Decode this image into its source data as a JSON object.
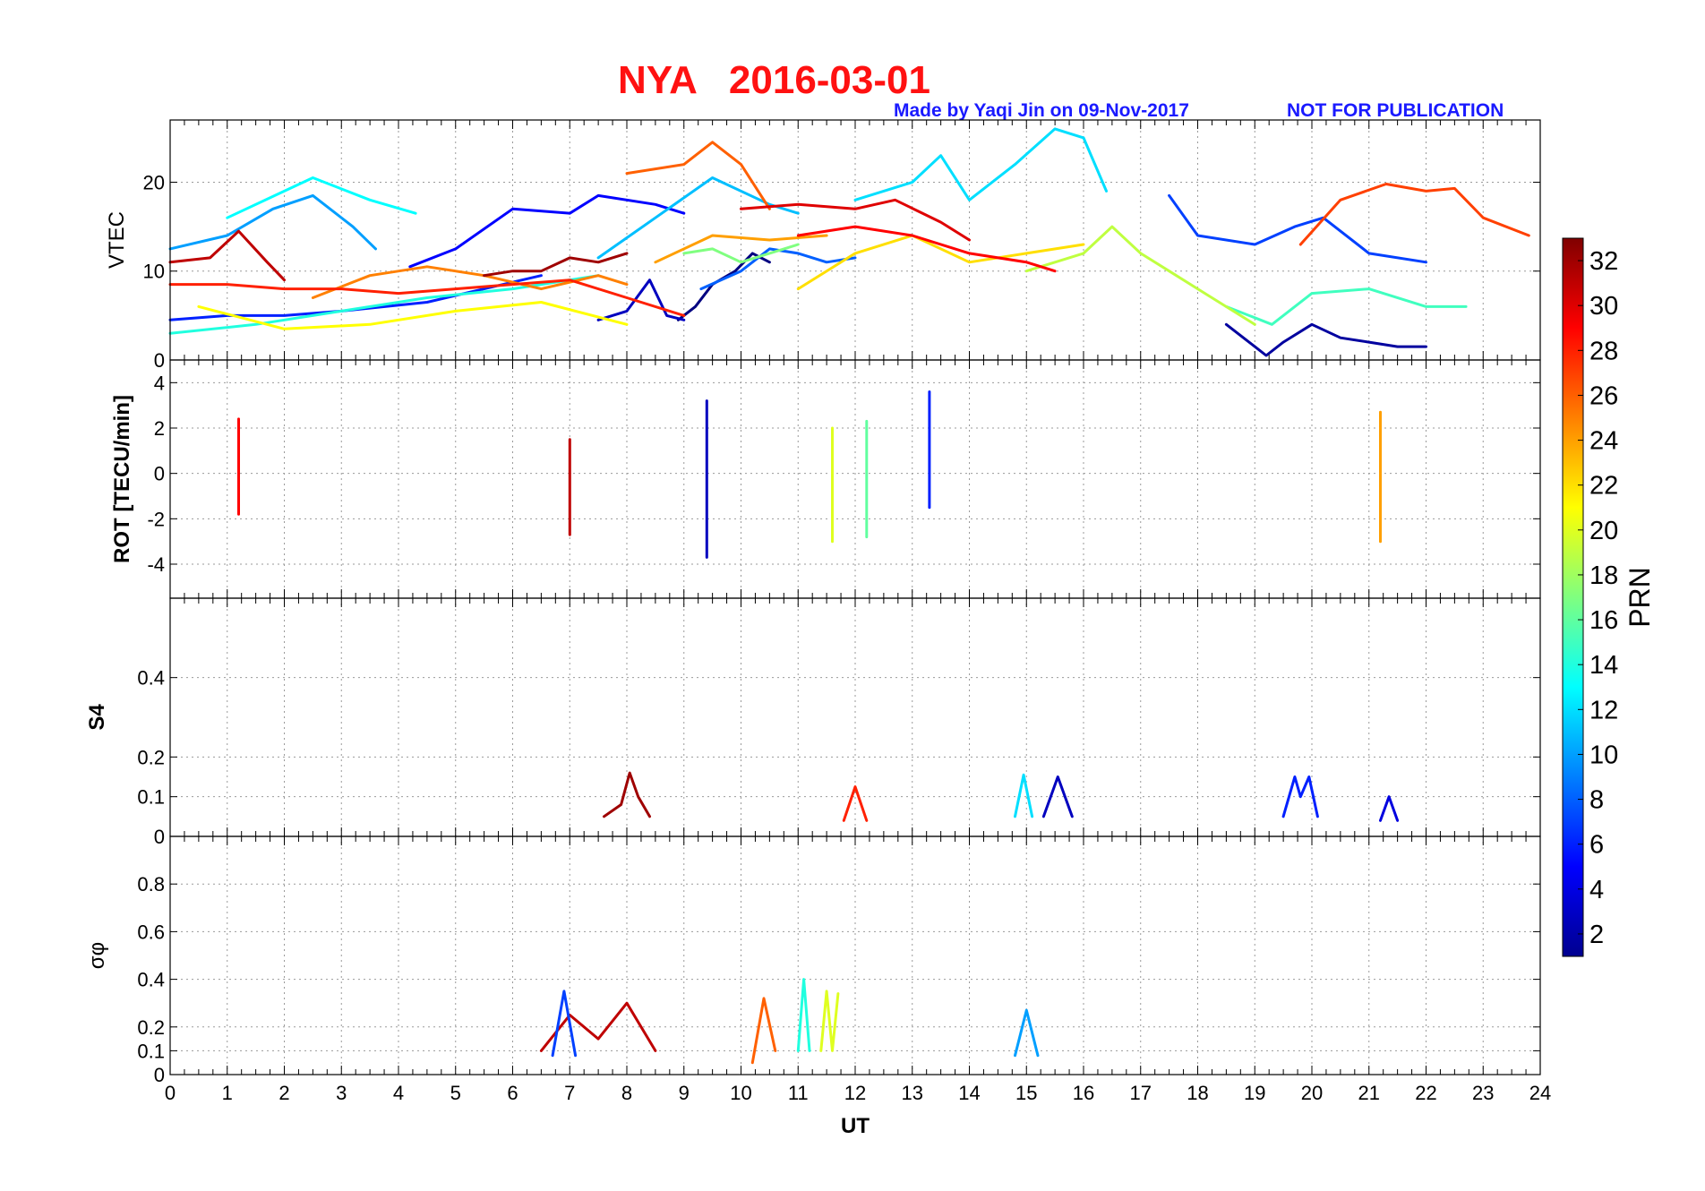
{
  "chart_data": [
    {
      "type": "line",
      "panel": "vtec",
      "title": "NYA   2016-03-01",
      "credit": "Made by Yaqi Jin on 09-Nov-2017",
      "notice": "NOT FOR PUBLICATION",
      "ylabel": "VTEC",
      "ylim": [
        0,
        27
      ],
      "yticks": [
        "0",
        "10",
        "20"
      ],
      "ytick_values": [
        0,
        10,
        20
      ],
      "xlim": [
        0,
        24
      ],
      "grid": true,
      "series": [
        {
          "name": "PRN 1",
          "prn": 1,
          "x": [
            8.9,
            9.2,
            9.5,
            9.9,
            10.2,
            10.5
          ],
          "values": [
            4.5,
            6,
            8.5,
            10,
            12,
            11
          ]
        },
        {
          "name": "PRN 2",
          "prn": 2,
          "x": [
            18.5,
            19.0,
            19.2,
            19.5,
            20.0,
            20.5,
            21.0,
            21.5,
            22.0
          ],
          "values": [
            4,
            1.5,
            0.5,
            2,
            4,
            2.5,
            2,
            1.5,
            1.5
          ]
        },
        {
          "name": "PRN 3",
          "prn": 3,
          "x": [
            7.5,
            8.0,
            8.4,
            8.7,
            9.0
          ],
          "values": [
            4.5,
            5.5,
            9,
            5,
            4.5
          ]
        },
        {
          "name": "PRN 5",
          "prn": 5,
          "x": [
            4.2,
            5.0,
            6.0,
            7.0,
            7.5,
            8.5,
            9.0
          ],
          "values": [
            10.5,
            12.5,
            17,
            16.5,
            18.5,
            17.5,
            16.5
          ]
        },
        {
          "name": "PRN 6",
          "prn": 6,
          "x": [
            0,
            1.0,
            2.0,
            3.0,
            4.5,
            5.5,
            6.5
          ],
          "values": [
            4.5,
            5,
            5,
            5.5,
            6.5,
            8,
            9.5
          ]
        },
        {
          "name": "PRN 7",
          "prn": 7,
          "x": [
            17.5,
            18.0,
            19.0,
            19.7,
            20.2,
            21.0,
            22.0
          ],
          "values": [
            18.5,
            14,
            13,
            15,
            16,
            12,
            11
          ]
        },
        {
          "name": "PRN 8",
          "prn": 8,
          "x": [
            9.3,
            10.0,
            10.5,
            11.0,
            11.5,
            12.0
          ],
          "values": [
            8,
            10,
            12.5,
            12,
            11,
            11.5
          ]
        },
        {
          "name": "PRN 10",
          "prn": 10,
          "x": [
            0,
            1.0,
            1.8,
            2.5,
            3.2,
            3.6
          ],
          "values": [
            12.5,
            14,
            17,
            18.5,
            15,
            12.5
          ]
        },
        {
          "name": "PRN 11",
          "prn": 11,
          "x": [
            7.5,
            8.5,
            9.5,
            10.5,
            11.0
          ],
          "values": [
            11.5,
            16,
            20.5,
            17.5,
            16.5
          ]
        },
        {
          "name": "PRN 12",
          "prn": 12,
          "x": [
            12.0,
            13.0,
            13.5,
            14.0,
            14.8,
            15.5,
            16.0,
            16.4
          ],
          "values": [
            18,
            20,
            23,
            18,
            22,
            26,
            25,
            19
          ]
        },
        {
          "name": "PRN 13",
          "prn": 13,
          "x": [
            1.0,
            2.0,
            2.5,
            3.5,
            4.3
          ],
          "values": [
            16,
            19,
            20.5,
            18,
            16.5
          ]
        },
        {
          "name": "PRN 14",
          "prn": 14,
          "x": [
            0,
            1.5,
            3.0,
            4.5,
            6.0,
            7.5
          ],
          "values": [
            3,
            4,
            5.5,
            7,
            8,
            9.5
          ]
        },
        {
          "name": "PRN 15",
          "prn": 15,
          "x": [
            18.5,
            19.3,
            20.0,
            21.0,
            22.0,
            22.7
          ],
          "values": [
            6,
            4,
            7.5,
            8,
            6,
            6
          ]
        },
        {
          "name": "PRN 17",
          "prn": 17,
          "x": [
            9.0,
            9.5,
            10.0,
            11.0
          ],
          "values": [
            12,
            12.5,
            11,
            13
          ]
        },
        {
          "name": "PRN 19",
          "prn": 19,
          "x": [
            15.0,
            16.0,
            16.5,
            17.0,
            17.5,
            18.0,
            19.0
          ],
          "values": [
            10,
            12,
            15,
            12,
            10,
            8,
            4
          ]
        },
        {
          "name": "PRN 21",
          "prn": 21,
          "x": [
            0.5,
            2.0,
            3.5,
            5.0,
            6.5,
            8.0
          ],
          "values": [
            6,
            3.5,
            4,
            5.5,
            6.5,
            4
          ]
        },
        {
          "name": "PRN 22",
          "prn": 22,
          "x": [
            11.0,
            12.0,
            13.0,
            14.0,
            15.0,
            16.0
          ],
          "values": [
            8,
            12,
            14,
            11,
            12,
            13
          ]
        },
        {
          "name": "PRN 24",
          "prn": 24,
          "x": [
            8.5,
            9.5,
            10.5,
            11.5
          ],
          "values": [
            11,
            14,
            13.5,
            14
          ]
        },
        {
          "name": "PRN 25",
          "prn": 25,
          "x": [
            2.5,
            3.5,
            4.5,
            5.5,
            6.5,
            7.5,
            8.0
          ],
          "values": [
            7,
            9.5,
            10.5,
            9.5,
            8,
            9.5,
            8.5
          ]
        },
        {
          "name": "PRN 26",
          "prn": 26,
          "x": [
            8.0,
            9.0,
            9.5,
            10.0,
            10.5
          ],
          "values": [
            21,
            22,
            24.5,
            22,
            17
          ]
        },
        {
          "name": "PRN 27",
          "prn": 27,
          "x": [
            19.8,
            20.5,
            21.3,
            22.0,
            22.5,
            23.0,
            23.8
          ],
          "values": [
            13,
            18,
            19.8,
            19,
            19.3,
            16,
            14
          ]
        },
        {
          "name": "PRN 28",
          "prn": 28,
          "x": [
            0,
            1.0,
            2.0,
            3.0,
            4.0,
            5.0,
            6.0,
            7.0,
            8.0,
            9.0
          ],
          "values": [
            8.5,
            8.5,
            8,
            8,
            7.5,
            8,
            8.5,
            9,
            7,
            5
          ]
        },
        {
          "name": "PRN 29",
          "prn": 29,
          "x": [
            11.0,
            12.0,
            13.0,
            14.0,
            15.0,
            15.5
          ],
          "values": [
            14,
            15,
            14,
            12,
            11,
            10
          ]
        },
        {
          "name": "PRN 30",
          "prn": 30,
          "x": [
            10.0,
            11.0,
            12.0,
            12.7,
            13.5,
            14.0
          ],
          "values": [
            17,
            17.5,
            17,
            18,
            15.5,
            13.5
          ]
        },
        {
          "name": "PRN 31",
          "prn": 31,
          "x": [
            0,
            0.7,
            1.2,
            1.7,
            2.0
          ],
          "values": [
            11,
            11.5,
            14.5,
            11,
            9
          ]
        },
        {
          "name": "PRN 32",
          "prn": 32,
          "x": [
            5.5,
            6.0,
            6.5,
            7.0,
            7.5,
            8.0
          ],
          "values": [
            9.5,
            10,
            10,
            11.5,
            11,
            12
          ]
        }
      ]
    },
    {
      "type": "line",
      "panel": "rot",
      "ylabel": "ROT [TECU/min]",
      "ylim": [
        -5.5,
        5
      ],
      "yticks": [
        "-4",
        "-2",
        "0",
        "2",
        "4"
      ],
      "ytick_values": [
        -4,
        -2,
        0,
        2,
        4
      ],
      "xlim": [
        0,
        24
      ],
      "grid": true,
      "series": [
        {
          "name": "PRN 3",
          "prn": 3,
          "x": [
            9.4,
            9.4
          ],
          "values": [
            -3.7,
            3.2
          ]
        },
        {
          "name": "PRN 6",
          "prn": 6,
          "x": [
            13.3,
            13.3
          ],
          "values": [
            -1.5,
            3.6
          ]
        },
        {
          "name": "PRN 20",
          "prn": 20,
          "x": [
            11.6,
            11.6
          ],
          "values": [
            -3.0,
            2.0
          ]
        },
        {
          "name": "PRN 16",
          "prn": 16,
          "x": [
            12.2,
            12.2
          ],
          "values": [
            -2.8,
            2.3
          ]
        },
        {
          "name": "PRN 31",
          "prn": 31,
          "x": [
            7.0,
            7.0
          ],
          "values": [
            -2.7,
            1.5
          ]
        },
        {
          "name": "PRN 24",
          "prn": 24,
          "x": [
            21.2,
            21.2
          ],
          "values": [
            -3.0,
            2.7
          ]
        },
        {
          "name": "PRN 29",
          "prn": 29,
          "x": [
            1.2,
            1.2
          ],
          "values": [
            -1.8,
            2.4
          ]
        }
      ]
    },
    {
      "type": "line",
      "panel": "s4",
      "ylabel": "S4",
      "ylim": [
        0,
        0.6
      ],
      "yticks": [
        "0",
        "0.1",
        "0.2",
        "0.4"
      ],
      "ytick_values": [
        0,
        0.1,
        0.2,
        0.4
      ],
      "xlim": [
        0,
        24
      ],
      "grid": true,
      "series": [
        {
          "name": "PRN 32",
          "prn": 32,
          "x": [
            7.6,
            7.9,
            8.05,
            8.2,
            8.4
          ],
          "values": [
            0.05,
            0.08,
            0.16,
            0.1,
            0.05
          ]
        },
        {
          "name": "PRN 6",
          "prn": 6,
          "x": [
            19.5,
            19.7,
            19.8,
            19.95,
            20.1
          ],
          "values": [
            0.05,
            0.15,
            0.1,
            0.15,
            0.05
          ]
        },
        {
          "name": "PRN 3",
          "prn": 3,
          "x": [
            15.3,
            15.55,
            15.8
          ],
          "values": [
            0.05,
            0.15,
            0.05
          ]
        },
        {
          "name": "PRN 12",
          "prn": 12,
          "x": [
            14.8,
            14.95,
            15.1
          ],
          "values": [
            0.05,
            0.155,
            0.05
          ]
        },
        {
          "name": "PRN 28",
          "prn": 28,
          "x": [
            11.8,
            12.0,
            12.2
          ],
          "values": [
            0.04,
            0.125,
            0.04
          ]
        },
        {
          "name": "PRN 4",
          "prn": 4,
          "x": [
            21.2,
            21.35,
            21.5
          ],
          "values": [
            0.04,
            0.1,
            0.04
          ]
        }
      ]
    },
    {
      "type": "line",
      "panel": "sigma_phi",
      "ylabel": "σφ",
      "ylim": [
        0,
        1
      ],
      "yticks": [
        "0",
        "0.1",
        "0.2",
        "0.4",
        "0.6",
        "0.8"
      ],
      "ytick_values": [
        0,
        0.1,
        0.2,
        0.4,
        0.6,
        0.8
      ],
      "xlabel": "UT",
      "xlim": [
        0,
        24
      ],
      "xticks": [
        "0",
        "1",
        "2",
        "3",
        "4",
        "5",
        "6",
        "7",
        "8",
        "9",
        "10",
        "11",
        "12",
        "13",
        "14",
        "15",
        "16",
        "17",
        "18",
        "19",
        "20",
        "21",
        "22",
        "23",
        "24"
      ],
      "xtick_values": [
        0,
        1,
        2,
        3,
        4,
        5,
        6,
        7,
        8,
        9,
        10,
        11,
        12,
        13,
        14,
        15,
        16,
        17,
        18,
        19,
        20,
        21,
        22,
        23,
        24
      ],
      "grid": true,
      "series": [
        {
          "name": "PRN 14",
          "prn": 14,
          "x": [
            11.0,
            11.1,
            11.2
          ],
          "values": [
            0.1,
            0.4,
            0.1
          ]
        },
        {
          "name": "PRN 20",
          "prn": 20,
          "x": [
            11.4,
            11.5,
            11.6,
            11.7
          ],
          "values": [
            0.1,
            0.35,
            0.1,
            0.34
          ]
        },
        {
          "name": "PRN 26",
          "prn": 26,
          "x": [
            10.2,
            10.4,
            10.6
          ],
          "values": [
            0.05,
            0.32,
            0.1
          ]
        },
        {
          "name": "PRN 31",
          "prn": 31,
          "x": [
            6.5,
            7.0,
            7.5,
            8.0,
            8.5
          ],
          "values": [
            0.1,
            0.25,
            0.15,
            0.3,
            0.1
          ]
        },
        {
          "name": "PRN 7",
          "prn": 7,
          "x": [
            6.7,
            6.9,
            7.1
          ],
          "values": [
            0.08,
            0.35,
            0.08
          ]
        },
        {
          "name": "PRN 10",
          "prn": 10,
          "x": [
            14.8,
            15.0,
            15.2
          ],
          "values": [
            0.08,
            0.27,
            0.08
          ]
        }
      ]
    }
  ],
  "colorbar": {
    "label": "PRN",
    "range": [
      1,
      33
    ],
    "ticks": [
      "2",
      "4",
      "6",
      "8",
      "10",
      "12",
      "14",
      "16",
      "18",
      "20",
      "22",
      "24",
      "26",
      "28",
      "30",
      "32"
    ],
    "tick_values": [
      2,
      4,
      6,
      8,
      10,
      12,
      14,
      16,
      18,
      20,
      22,
      24,
      26,
      28,
      30,
      32
    ]
  }
}
